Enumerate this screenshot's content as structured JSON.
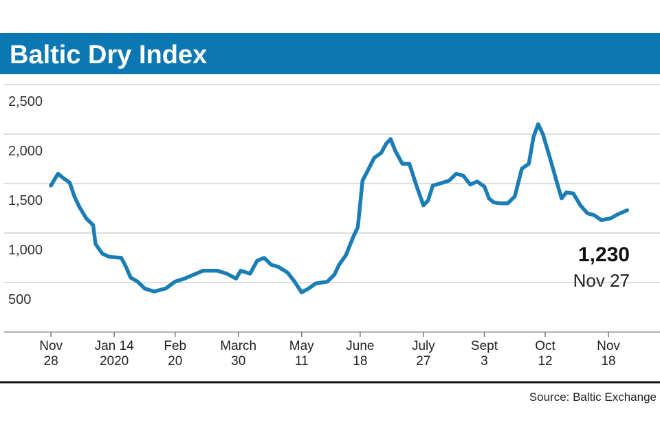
{
  "chart_data": {
    "type": "line",
    "title": "Baltic Dry Index",
    "source": "Source: Baltic Exchange",
    "x": [
      0,
      3,
      5,
      8,
      10,
      12,
      15,
      18,
      19,
      22,
      25,
      30,
      32,
      34,
      37,
      40,
      44,
      49,
      53,
      57,
      62,
      65,
      71,
      75,
      79,
      81,
      85,
      88,
      91,
      94,
      97,
      101,
      104,
      107,
      110,
      113,
      118,
      121,
      123,
      126,
      129,
      131,
      133,
      135,
      138,
      141,
      143,
      145,
      147,
      150,
      153,
      156,
      159,
      161,
      163,
      166,
      170,
      173,
      176,
      179,
      182,
      185,
      187,
      189,
      192,
      195,
      198,
      201,
      204,
      206,
      208,
      210,
      213,
      216,
      218,
      220,
      223,
      226,
      229,
      232,
      235,
      239,
      242,
      246
    ],
    "series": [
      {
        "name": "Baltic Dry Index",
        "color": "#1a7db6",
        "values": [
          1480,
          1600,
          1560,
          1510,
          1370,
          1270,
          1150,
          1080,
          890,
          790,
          760,
          750,
          660,
          550,
          510,
          440,
          410,
          440,
          510,
          540,
          590,
          620,
          620,
          590,
          540,
          620,
          590,
          720,
          750,
          680,
          660,
          600,
          510,
          400,
          440,
          490,
          510,
          580,
          680,
          780,
          960,
          1060,
          1530,
          1620,
          1760,
          1810,
          1900,
          1950,
          1830,
          1700,
          1700,
          1480,
          1280,
          1330,
          1480,
          1500,
          1530,
          1600,
          1580,
          1490,
          1520,
          1470,
          1350,
          1310,
          1300,
          1300,
          1370,
          1650,
          1700,
          1970,
          2100,
          2000,
          1760,
          1510,
          1350,
          1410,
          1400,
          1280,
          1200,
          1180,
          1130,
          1150,
          1190,
          1230
        ]
      }
    ],
    "end_label": {
      "value": 1230,
      "label": "1,230",
      "date": "Nov 27"
    },
    "xlim": [
      -20,
      260
    ],
    "xticks": [
      {
        "value": 0,
        "label": "Nov\n28"
      },
      {
        "value": 27,
        "label": "Jan 14\n2020"
      },
      {
        "value": 53,
        "label": "Feb\n20"
      },
      {
        "value": 80,
        "label": "March\n30"
      },
      {
        "value": 107,
        "label": "May\n11"
      },
      {
        "value": 132,
        "label": "June\n18"
      },
      {
        "value": 159,
        "label": "July\n27"
      },
      {
        "value": 185,
        "label": "Sept\n3"
      },
      {
        "value": 211,
        "label": "Oct\n12"
      },
      {
        "value": 238,
        "label": "Nov\n18"
      }
    ],
    "ylim": [
      0,
      2500
    ],
    "yticks": [
      {
        "value": 500,
        "label": "500"
      },
      {
        "value": 1000,
        "label": "1,000"
      },
      {
        "value": 1500,
        "label": "1,500"
      },
      {
        "value": 2000,
        "label": "2,000"
      },
      {
        "value": 2500,
        "label": "2,500"
      }
    ],
    "grid": true
  }
}
